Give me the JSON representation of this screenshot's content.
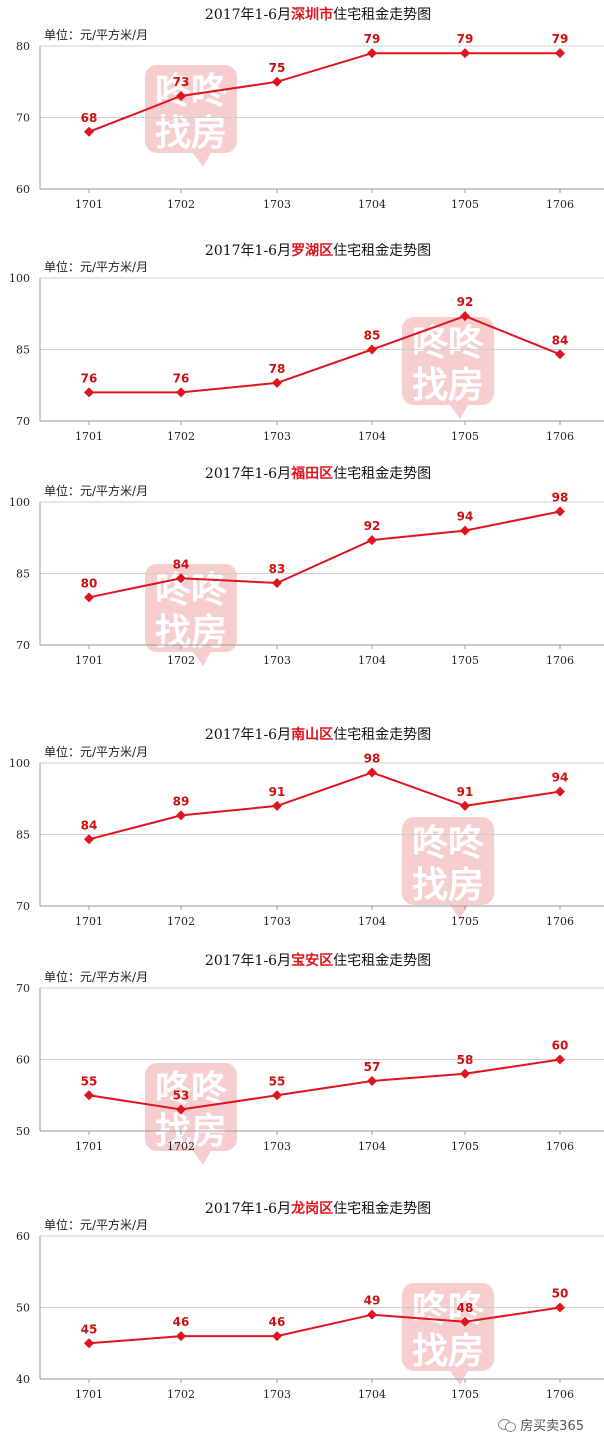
{
  "watermark": {
    "line1": "咚咚",
    "line2": "找房"
  },
  "footer": {
    "account": "房买卖365",
    "icon": "wechat-icon"
  },
  "colors": {
    "line": "#e0141e",
    "title_highlight": "#e0141e",
    "grid": "#cfcfcf",
    "watermark": "#d81e1e"
  },
  "chart_data": [
    {
      "type": "line",
      "title_prefix": "2017年1-6月",
      "title_region": "深圳市",
      "title_suffix": "住宅租金走势图",
      "unit": "单位：元/平方米/月",
      "categories": [
        "1701",
        "1702",
        "1703",
        "1704",
        "1705",
        "1706"
      ],
      "values": [
        68,
        73,
        75,
        79,
        79,
        79
      ],
      "ylim": [
        60,
        80
      ],
      "yticks": [
        "60",
        "70",
        "80"
      ],
      "grid": true
    },
    {
      "type": "line",
      "title_prefix": "2017年1-6月",
      "title_region": "罗湖区",
      "title_suffix": "住宅租金走势图",
      "unit": "单位：元/平方米/月",
      "categories": [
        "1701",
        "1702",
        "1703",
        "1704",
        "1705",
        "1706"
      ],
      "values": [
        76,
        76,
        78,
        85,
        92,
        84
      ],
      "ylim": [
        70,
        100
      ],
      "yticks": [
        "70",
        "85",
        "100"
      ],
      "grid": true
    },
    {
      "type": "line",
      "title_prefix": "2017年1-6月",
      "title_region": "福田区",
      "title_suffix": "住宅租金走势图",
      "unit": "单位：元/平方米/月",
      "categories": [
        "1701",
        "1702",
        "1703",
        "1704",
        "1705",
        "1706"
      ],
      "values": [
        80,
        84,
        83,
        92,
        94,
        98
      ],
      "ylim": [
        70,
        100
      ],
      "yticks": [
        "70",
        "85",
        "100"
      ],
      "grid": true
    },
    {
      "type": "line",
      "title_prefix": "2017年1-6月",
      "title_region": "南山区",
      "title_suffix": "住宅租金走势图",
      "unit": "单位：元/平方米/月",
      "categories": [
        "1701",
        "1702",
        "1703",
        "1704",
        "1705",
        "1706"
      ],
      "values": [
        84,
        89,
        91,
        98,
        91,
        94
      ],
      "ylim": [
        70,
        100
      ],
      "yticks": [
        "70",
        "85",
        "100"
      ],
      "grid": true
    },
    {
      "type": "line",
      "title_prefix": "2017年1-6月",
      "title_region": "宝安区",
      "title_suffix": "住宅租金走势图",
      "unit": "单位：元/平方米/月",
      "categories": [
        "1701",
        "1702",
        "1703",
        "1704",
        "1705",
        "1706"
      ],
      "values": [
        55,
        53,
        55,
        57,
        58,
        60
      ],
      "ylim": [
        50,
        70
      ],
      "yticks": [
        "50",
        "60",
        "70"
      ],
      "grid": true
    },
    {
      "type": "line",
      "title_prefix": "2017年1-6月",
      "title_region": "龙岗区",
      "title_suffix": "住宅租金走势图",
      "unit": "单位：元/平方米/月",
      "categories": [
        "1701",
        "1702",
        "1703",
        "1704",
        "1705",
        "1706"
      ],
      "values": [
        45,
        46,
        46,
        49,
        48,
        50
      ],
      "ylim": [
        40,
        60
      ],
      "yticks": [
        "40",
        "50",
        "60"
      ],
      "grid": true
    }
  ]
}
